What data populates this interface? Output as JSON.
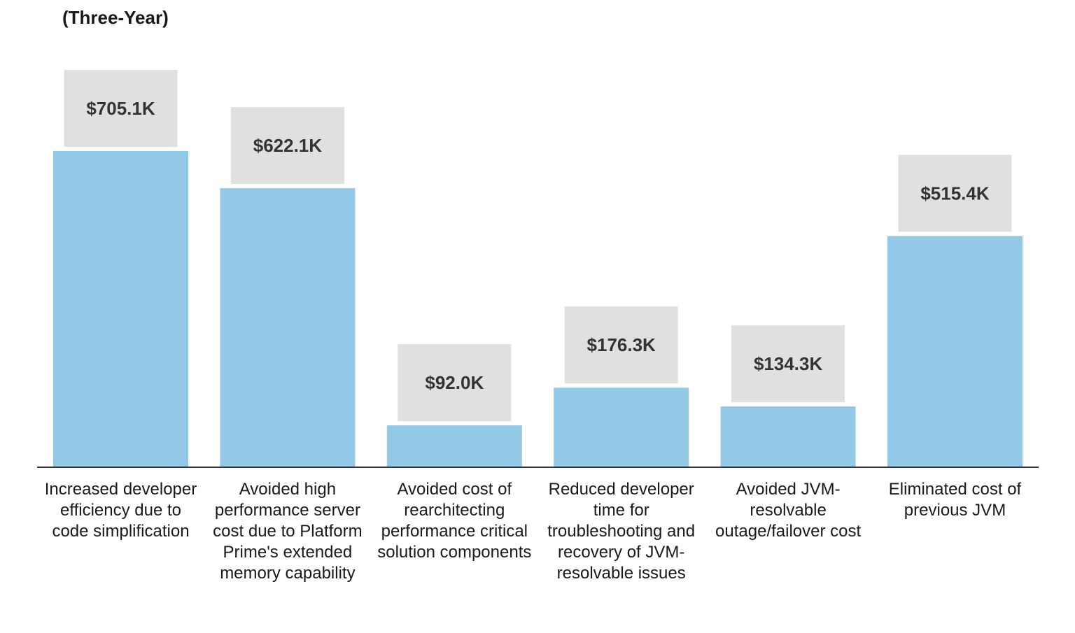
{
  "chart_data": {
    "type": "bar",
    "title": "(Three-Year)",
    "categories": [
      [
        "Increased developer",
        "efficiency due to",
        "code simplification"
      ],
      [
        "Avoided high",
        "performance server",
        "cost due to Platform",
        "Prime's extended",
        "memory capability"
      ],
      [
        "Avoided cost of",
        "rearchitecting",
        "performance critical",
        "solution components"
      ],
      [
        "Reduced developer",
        "time for",
        "troubleshooting and",
        "recovery of JVM-",
        "resolvable issues"
      ],
      [
        "Avoided JVM-",
        "resolvable",
        "outage/failover cost"
      ],
      [
        "Eliminated cost of",
        "previous JVM"
      ]
    ],
    "values": [
      705.1,
      622.1,
      92.0,
      176.3,
      134.3,
      515.4
    ],
    "data_labels": [
      "$705.1K",
      "$622.1K",
      "$92.0K",
      "$176.3K",
      "$134.3K",
      "$515.4K"
    ],
    "unit": "K",
    "ylim": [
      0,
      705.1
    ],
    "grid": false,
    "colors": {
      "bar": "#93c9e7",
      "label_box": "#e0e0e0",
      "axis": "#333333"
    }
  }
}
